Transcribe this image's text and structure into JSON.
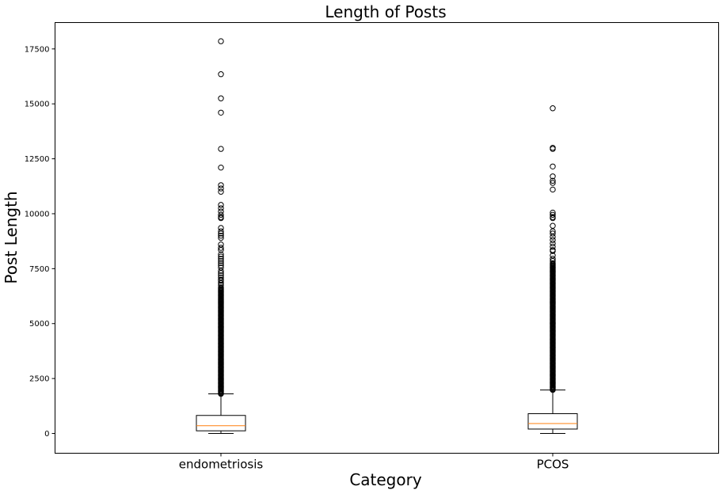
{
  "chart_data": {
    "type": "box",
    "title": "Length of Posts",
    "xlabel": "Category",
    "ylabel": "Post Length",
    "ylim": [
      -900,
      18700
    ],
    "yticks": [
      0,
      2500,
      5000,
      7500,
      10000,
      12500,
      15000,
      17500
    ],
    "grid": false,
    "colors": {
      "median": "#ff7f0e",
      "box": "#000000",
      "outlier_edge": "#000000"
    },
    "categories": [
      "endometriosis",
      "PCOS"
    ],
    "series": [
      {
        "category": "endometriosis",
        "whisker_low": 0,
        "q1": 120,
        "median": 350,
        "q3": 820,
        "whisker_high": 1800,
        "outlier_band": [
          1800,
          6600
        ],
        "outliers": [
          17850,
          16350,
          15250,
          14600,
          12950,
          12100,
          11300,
          11150,
          11000,
          10400,
          10250,
          10100,
          9950,
          9850,
          9800,
          9350,
          9200,
          9100,
          9000,
          8900,
          8600,
          8450,
          8350,
          8150,
          8050,
          7950,
          7850,
          7750,
          7650,
          7550,
          7400,
          7300,
          7200,
          7100,
          7000,
          6950,
          6850,
          6750,
          6650
        ]
      },
      {
        "category": "PCOS",
        "whisker_low": 0,
        "q1": 200,
        "median": 450,
        "q3": 900,
        "whisker_high": 1980,
        "outlier_band": [
          1980,
          7700
        ],
        "outliers": [
          14800,
          13000,
          12950,
          12150,
          11700,
          11500,
          11400,
          11100,
          10050,
          9950,
          9850,
          9800,
          9450,
          9200,
          9100,
          8950,
          8800,
          8650,
          8500,
          8350,
          8300,
          8100,
          7950,
          7850,
          7750
        ]
      }
    ]
  }
}
